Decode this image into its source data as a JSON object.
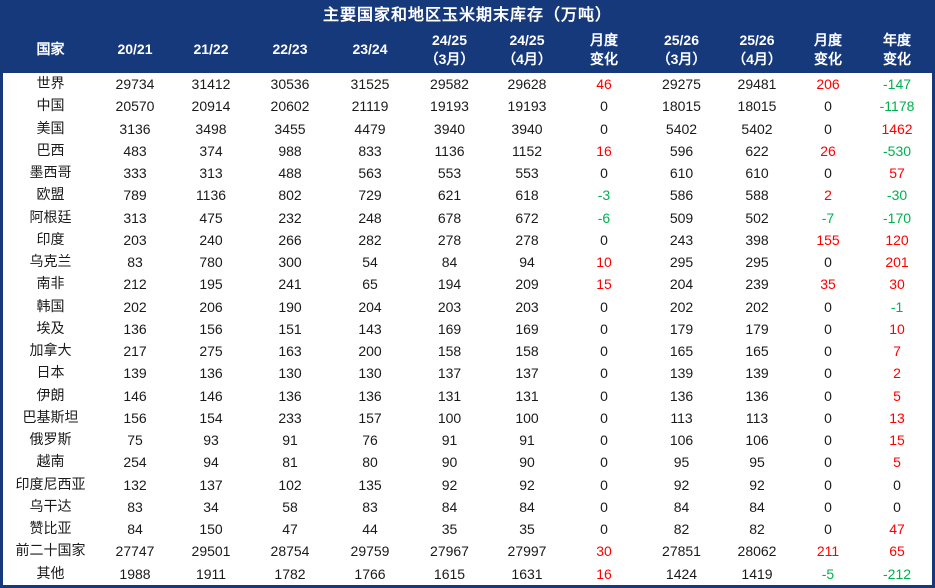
{
  "title": "主要国家和地区玉米期末库存（万吨）",
  "colors": {
    "header_bg": "#16397C",
    "border": "#16397C",
    "header_text": "#FFFFFF",
    "body_text": "#1A1A1A",
    "positive_change": "#FF0000",
    "negative_change": "#00B050",
    "zero_change": "#1A1A1A"
  },
  "chart_data": {
    "type": "table",
    "title": "主要国家和地区玉米期末库存（万吨）",
    "columns": [
      "国家",
      "20/21",
      "21/22",
      "22/23",
      "23/24",
      "24/25\n（3月）",
      "24/25\n（4月）",
      "月度\n变化",
      "25/26\n（3月）",
      "25/26\n（4月）",
      "月度\n变化",
      "年度\n变化"
    ],
    "change_column_indices": [
      6,
      9,
      10
    ],
    "rows": [
      {
        "name": "世界",
        "values": [
          29734,
          31412,
          30536,
          31525,
          29582,
          29628,
          46,
          29275,
          29481,
          206,
          -147
        ]
      },
      {
        "name": "中国",
        "values": [
          20570,
          20914,
          20602,
          21119,
          19193,
          19193,
          0,
          18015,
          18015,
          0,
          -1178
        ]
      },
      {
        "name": "美国",
        "values": [
          3136,
          3498,
          3455,
          4479,
          3940,
          3940,
          0,
          5402,
          5402,
          0,
          1462
        ]
      },
      {
        "name": "巴西",
        "values": [
          483,
          374,
          988,
          833,
          1136,
          1152,
          16,
          596,
          622,
          26,
          -530
        ]
      },
      {
        "name": "墨西哥",
        "values": [
          333,
          313,
          488,
          563,
          553,
          553,
          0,
          610,
          610,
          0,
          57
        ]
      },
      {
        "name": "欧盟",
        "values": [
          789,
          1136,
          802,
          729,
          621,
          618,
          -3,
          586,
          588,
          2,
          -30
        ]
      },
      {
        "name": "阿根廷",
        "values": [
          313,
          475,
          232,
          248,
          678,
          672,
          -6,
          509,
          502,
          -7,
          -170
        ]
      },
      {
        "name": "印度",
        "values": [
          203,
          240,
          266,
          282,
          278,
          278,
          0,
          243,
          398,
          155,
          120
        ]
      },
      {
        "name": "乌克兰",
        "values": [
          83,
          780,
          300,
          54,
          84,
          94,
          10,
          295,
          295,
          0,
          201
        ]
      },
      {
        "name": "南非",
        "values": [
          212,
          195,
          241,
          65,
          194,
          209,
          15,
          204,
          239,
          35,
          30
        ]
      },
      {
        "name": "韩国",
        "values": [
          202,
          206,
          190,
          204,
          203,
          203,
          0,
          202,
          202,
          0,
          -1
        ]
      },
      {
        "name": "埃及",
        "values": [
          136,
          156,
          151,
          143,
          169,
          169,
          0,
          179,
          179,
          0,
          10
        ]
      },
      {
        "name": "加拿大",
        "values": [
          217,
          275,
          163,
          200,
          158,
          158,
          0,
          165,
          165,
          0,
          7
        ]
      },
      {
        "name": "日本",
        "values": [
          139,
          136,
          130,
          130,
          137,
          137,
          0,
          139,
          139,
          0,
          2
        ]
      },
      {
        "name": "伊朗",
        "values": [
          146,
          146,
          136,
          136,
          131,
          131,
          0,
          136,
          136,
          0,
          5
        ]
      },
      {
        "name": "巴基斯坦",
        "values": [
          156,
          154,
          233,
          157,
          100,
          100,
          0,
          113,
          113,
          0,
          13
        ]
      },
      {
        "name": "俄罗斯",
        "values": [
          75,
          93,
          91,
          76,
          91,
          91,
          0,
          106,
          106,
          0,
          15
        ]
      },
      {
        "name": "越南",
        "values": [
          254,
          94,
          81,
          80,
          90,
          90,
          0,
          95,
          95,
          0,
          5
        ]
      },
      {
        "name": "印度尼西亚",
        "values": [
          132,
          137,
          102,
          135,
          92,
          92,
          0,
          92,
          92,
          0,
          0
        ]
      },
      {
        "name": "乌干达",
        "values": [
          83,
          34,
          58,
          83,
          84,
          84,
          0,
          84,
          84,
          0,
          0
        ]
      },
      {
        "name": "赞比亚",
        "values": [
          84,
          150,
          47,
          44,
          35,
          35,
          0,
          82,
          82,
          0,
          47
        ]
      },
      {
        "name": "前二十国家",
        "values": [
          27747,
          29501,
          28754,
          29759,
          27967,
          27997,
          30,
          27851,
          28062,
          211,
          65
        ]
      },
      {
        "name": "其他",
        "values": [
          1988,
          1911,
          1782,
          1766,
          1615,
          1631,
          16,
          1424,
          1419,
          -5,
          -212
        ]
      }
    ]
  }
}
